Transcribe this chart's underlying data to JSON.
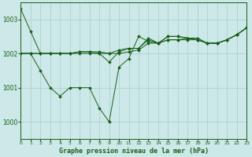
{
  "background_color": "#cce8e8",
  "plot_bg_color": "#cce8e8",
  "grid_color": "#aacccc",
  "line_color": "#1a5e1a",
  "title": "Graphe pression niveau de la mer (hPa)",
  "xlim": [
    0,
    23
  ],
  "ylim": [
    999.5,
    1003.5
  ],
  "yticks": [
    1000,
    1001,
    1002,
    1003
  ],
  "xtick_labels": [
    "0",
    "1",
    "2",
    "3",
    "4",
    "5",
    "6",
    "7",
    "8",
    "9",
    "10",
    "11",
    "12",
    "13",
    "14",
    "15",
    "16",
    "17",
    "18",
    "19",
    "20",
    "21",
    "22",
    "23"
  ],
  "series": [
    [
      1003.3,
      1002.65,
      1002.0,
      1002.0,
      1002.0,
      1002.0,
      1002.0,
      1002.0,
      1002.0,
      1002.0,
      1002.0,
      1002.05,
      1002.1,
      1002.3,
      1002.3,
      1002.4,
      1002.4,
      1002.4,
      1002.4,
      1002.3,
      1002.3,
      1002.4,
      1002.55,
      1002.75
    ],
    [
      1002.0,
      1002.0,
      1001.5,
      1001.0,
      1000.75,
      1001.0,
      1001.0,
      1001.0,
      1000.4,
      1000.0,
      1001.6,
      1001.85,
      1002.5,
      1002.35,
      1002.3,
      1002.4,
      1002.4,
      1002.45,
      1002.45,
      1002.3,
      1002.3,
      1002.4,
      1002.55,
      1002.75
    ],
    [
      1002.0,
      1002.0,
      1002.0,
      1002.0,
      1002.0,
      1002.0,
      1002.05,
      1002.05,
      1002.0,
      1001.75,
      1002.05,
      1002.15,
      1002.15,
      1002.45,
      1002.3,
      1002.5,
      1002.5,
      1002.45,
      1002.4,
      1002.3,
      1002.3,
      1002.4,
      1002.55,
      1002.75
    ],
    [
      1002.0,
      1002.0,
      1002.0,
      1002.0,
      1002.0,
      1002.0,
      1002.05,
      1002.05,
      1002.05,
      1002.0,
      1002.1,
      1002.15,
      1002.15,
      1002.4,
      1002.3,
      1002.5,
      1002.5,
      1002.45,
      1002.4,
      1002.3,
      1002.3,
      1002.4,
      1002.55,
      1002.75
    ]
  ]
}
